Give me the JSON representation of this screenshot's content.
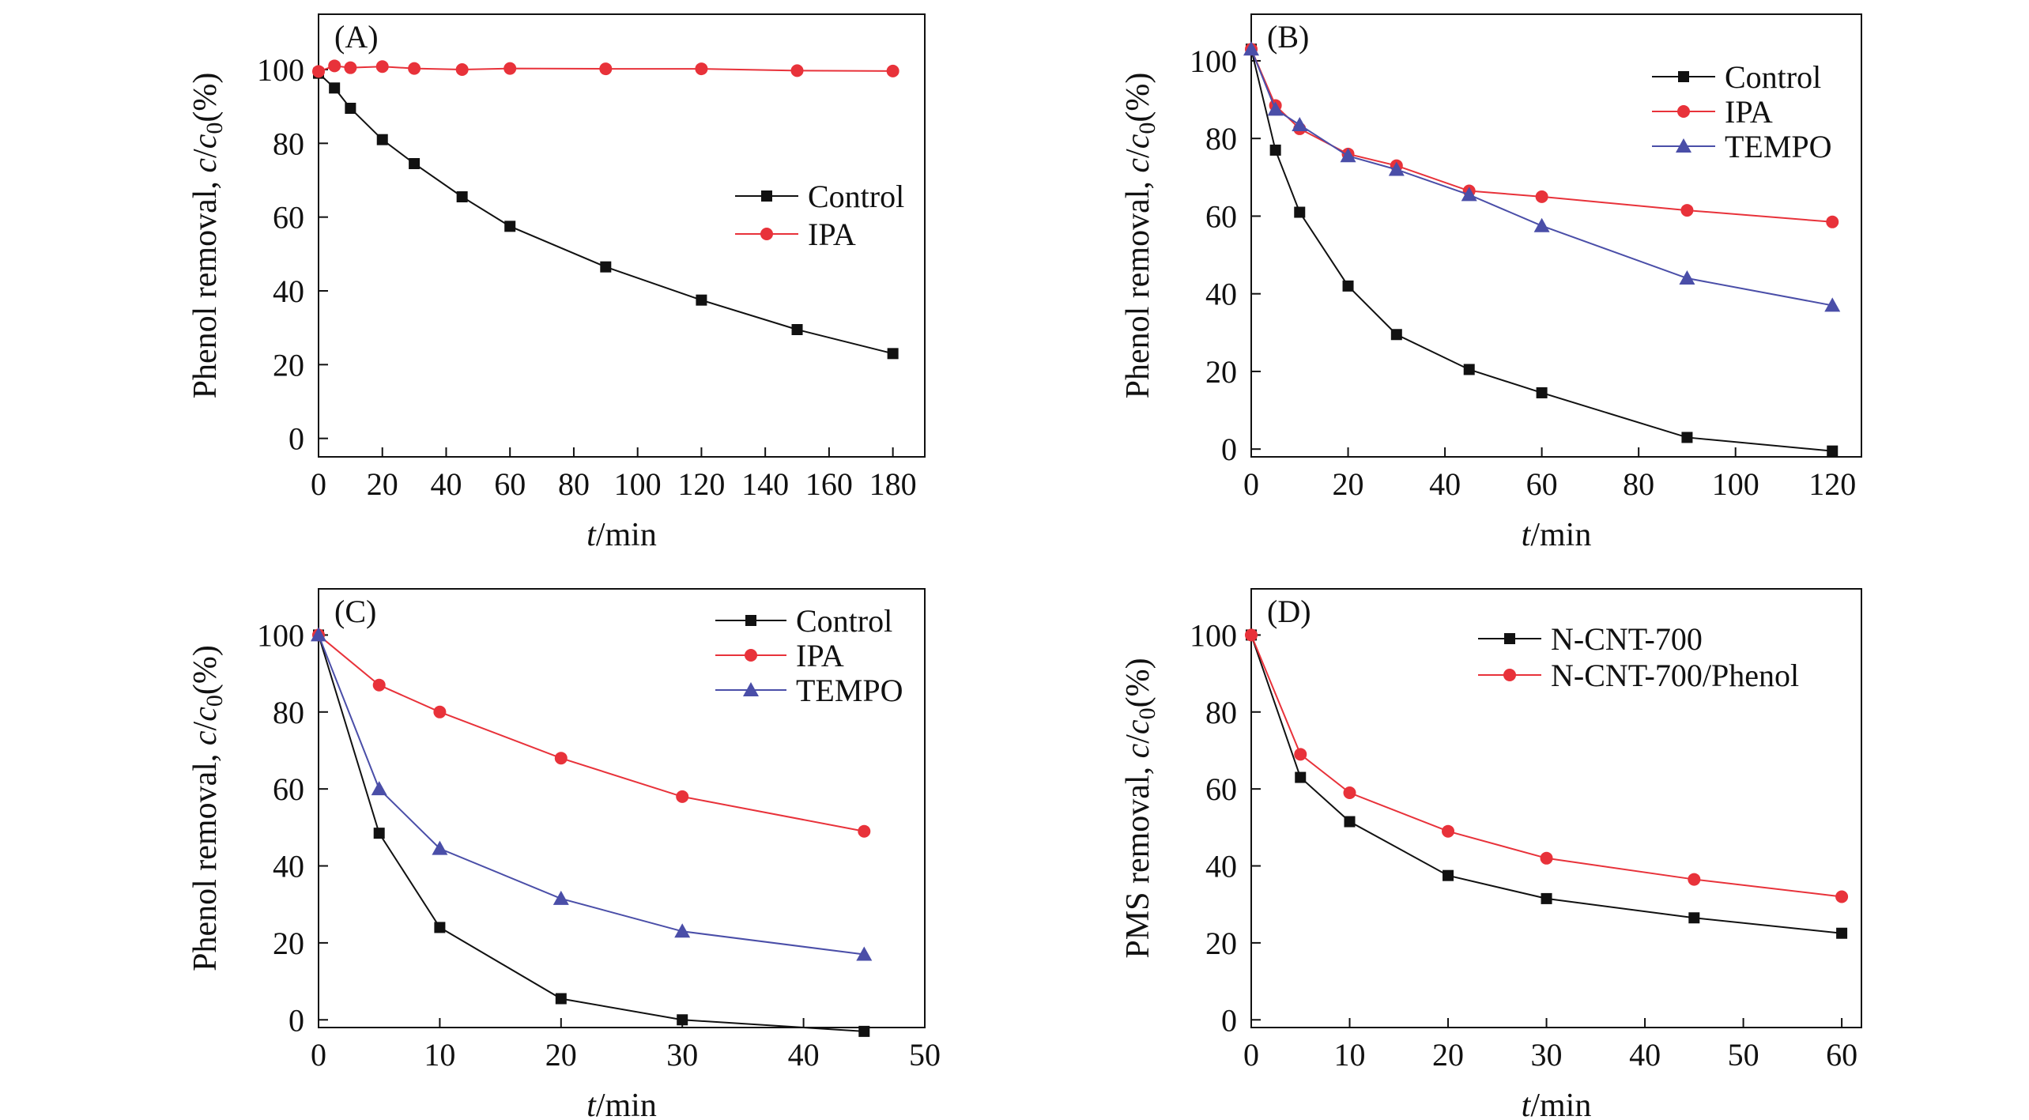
{
  "figure": {
    "title": ""
  },
  "colors": {
    "black_series": "#111111",
    "red_series": "#e8323a",
    "blue_series": "#4a4ea8",
    "axis": "#111111"
  },
  "chart_data": [
    {
      "panel": "(A)",
      "type": "line",
      "xlabel": {
        "italic": "t",
        "rest": "/min"
      },
      "ylabel": {
        "pre": "Phenol removal, ",
        "c1": "c",
        "slash": "/",
        "c2": "c",
        "sub": "0",
        "post": "(%)"
      },
      "xlim": [
        0,
        190
      ],
      "ylim": [
        -5,
        115
      ],
      "xticks": [
        0,
        20,
        40,
        60,
        80,
        100,
        120,
        140,
        160,
        180
      ],
      "yticks": [
        0,
        20,
        40,
        60,
        80,
        100
      ],
      "legend_position": "center-right",
      "series": [
        {
          "name": "Control",
          "marker": "square",
          "color": "#111111",
          "x": [
            0,
            5,
            10,
            20,
            30,
            45,
            60,
            90,
            120,
            150,
            180
          ],
          "y": [
            99,
            95,
            89.5,
            81,
            74.5,
            65.5,
            57.5,
            46.5,
            37.5,
            29.5,
            23
          ]
        },
        {
          "name": "IPA",
          "marker": "circle",
          "color": "#e8323a",
          "x": [
            0,
            5,
            10,
            20,
            30,
            45,
            60,
            90,
            120,
            150,
            180
          ],
          "y": [
            99.5,
            101,
            100.5,
            100.8,
            100.3,
            100,
            100.3,
            100.2,
            100.2,
            99.7,
            99.6
          ]
        }
      ]
    },
    {
      "panel": "(B)",
      "type": "line",
      "xlabel": {
        "italic": "t",
        "rest": "/min"
      },
      "ylabel": {
        "pre": "Phenol removal, ",
        "c1": "c",
        "slash": "/",
        "c2": "c",
        "sub": "0",
        "post": "(%)"
      },
      "xlim": [
        0,
        126
      ],
      "ylim": [
        -2,
        112
      ],
      "xticks": [
        0,
        20,
        40,
        60,
        80,
        100,
        120
      ],
      "yticks": [
        0,
        20,
        40,
        60,
        80,
        100
      ],
      "legend_position": "top-right",
      "series": [
        {
          "name": "Control",
          "marker": "square",
          "color": "#111111",
          "x": [
            0,
            5,
            10,
            20,
            30,
            45,
            60,
            90,
            120
          ],
          "y": [
            103,
            77,
            61,
            42,
            29.5,
            20.5,
            14.5,
            3,
            -0.5
          ]
        },
        {
          "name": "IPA",
          "marker": "circle",
          "color": "#e8323a",
          "x": [
            0,
            5,
            10,
            20,
            30,
            45,
            60,
            90,
            120
          ],
          "y": [
            103,
            88.5,
            82.5,
            76,
            73,
            66.5,
            65,
            61.5,
            58.5
          ]
        },
        {
          "name": "TEMPO",
          "marker": "triangle",
          "color": "#4a4ea8",
          "x": [
            0,
            5,
            10,
            20,
            30,
            45,
            60,
            90,
            120
          ],
          "y": [
            103,
            87.5,
            83.5,
            75.5,
            72,
            65.5,
            57.5,
            44,
            37
          ]
        }
      ]
    },
    {
      "panel": "(C)",
      "type": "line",
      "xlabel": {
        "italic": "t",
        "rest": "/min"
      },
      "ylabel": {
        "pre": "Phenol removal, ",
        "c1": "c",
        "slash": "/",
        "c2": "c",
        "sub": "0",
        "post": "(%)"
      },
      "xlim": [
        0,
        50
      ],
      "ylim": [
        -2,
        112
      ],
      "xticks": [
        0,
        10,
        20,
        30,
        40,
        50
      ],
      "yticks": [
        0,
        20,
        40,
        60,
        80,
        100
      ],
      "legend_position": "top-right",
      "series": [
        {
          "name": "Control",
          "marker": "square",
          "color": "#111111",
          "x": [
            0,
            5,
            10,
            20,
            30,
            45
          ],
          "y": [
            100,
            48.5,
            24,
            5.5,
            0,
            -3
          ]
        },
        {
          "name": "IPA",
          "marker": "circle",
          "color": "#e8323a",
          "x": [
            0,
            5,
            10,
            20,
            30,
            45
          ],
          "y": [
            100,
            87,
            80,
            68,
            58,
            49
          ]
        },
        {
          "name": "TEMPO",
          "marker": "triangle",
          "color": "#4a4ea8",
          "x": [
            0,
            5,
            10,
            20,
            30,
            45
          ],
          "y": [
            100,
            60,
            44.5,
            31.5,
            23,
            17
          ]
        }
      ]
    },
    {
      "panel": "(D)",
      "type": "line",
      "xlabel": {
        "italic": "t",
        "rest": "/min"
      },
      "ylabel": {
        "pre": "PMS removal, ",
        "c1": "c",
        "slash": "/",
        "c2": "c",
        "sub": "0",
        "post": "(%)"
      },
      "xlim": [
        0,
        62
      ],
      "ylim": [
        -2,
        112
      ],
      "xticks": [
        0,
        10,
        20,
        30,
        40,
        50,
        60
      ],
      "yticks": [
        0,
        20,
        40,
        60,
        80,
        100
      ],
      "legend_position": "top-right",
      "series": [
        {
          "name": "N-CNT-700",
          "marker": "square",
          "color": "#111111",
          "x": [
            0,
            5,
            10,
            20,
            30,
            45,
            60
          ],
          "y": [
            100,
            63,
            51.5,
            37.5,
            31.5,
            26.5,
            22.5
          ]
        },
        {
          "name": "N-CNT-700/Phenol",
          "marker": "circle",
          "color": "#e8323a",
          "x": [
            0,
            5,
            10,
            20,
            30,
            45,
            60
          ],
          "y": [
            100,
            69,
            59,
            49,
            42,
            36.5,
            32
          ]
        }
      ]
    }
  ]
}
